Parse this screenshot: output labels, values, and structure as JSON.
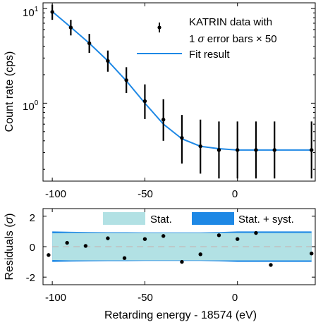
{
  "chart_data": [
    {
      "type": "scatter",
      "panel": "top",
      "xlabel": "",
      "ylabel": "Count rate (cps)",
      "yscale": "log",
      "xlim": [
        -105,
        42
      ],
      "ylim": [
        0.15,
        11.5
      ],
      "x_ticks": [
        -100,
        -50,
        0
      ],
      "x_tick_labels": [
        "-100",
        "-50",
        "0"
      ],
      "y_ticks": [
        1,
        10
      ],
      "y_tick_base": "10",
      "y_tick_exponents": [
        "0",
        "1"
      ],
      "legend_position": "top-right",
      "legend": {
        "data_label_line1": "KATRIN data with",
        "data_label_line2_prefix": "1",
        "data_label_line2_sigma": "σ",
        "data_label_line2_suffix": "error bars",
        "data_label_line2_times": "×",
        "data_label_line2_factor": "50",
        "fit_label": "Fit result"
      },
      "series": [
        {
          "kind": "points-with-errorbars",
          "x": [
            -100,
            -90,
            -80,
            -70,
            -60,
            -50,
            -40,
            -30,
            -20,
            -10,
            0,
            10,
            20,
            40
          ],
          "y": [
            9.2,
            6.3,
            4.3,
            2.8,
            1.75,
            1.05,
            0.67,
            0.43,
            0.35,
            0.32,
            0.32,
            0.32,
            0.32,
            0.32
          ],
          "y_low": [
            7.6,
            5.2,
            3.4,
            2.15,
            1.28,
            0.68,
            0.4,
            0.23,
            0.18,
            0.16,
            0.16,
            0.16,
            0.16,
            0.16
          ],
          "y_high": [
            11.0,
            7.6,
            5.4,
            3.6,
            2.4,
            1.58,
            1.1,
            0.75,
            0.67,
            0.64,
            0.64,
            0.64,
            0.64,
            0.64
          ],
          "color": "#000000"
        },
        {
          "kind": "line",
          "x": [
            -100,
            -90,
            -80,
            -70,
            -60,
            -50,
            -40,
            -30,
            -20,
            -10,
            0,
            10,
            20,
            30,
            40
          ],
          "y": [
            9.3,
            6.35,
            4.3,
            2.8,
            1.72,
            1.0,
            0.6,
            0.42,
            0.35,
            0.33,
            0.32,
            0.32,
            0.32,
            0.32,
            0.32
          ],
          "color": "#1e88e5"
        }
      ]
    },
    {
      "type": "scatter",
      "panel": "bottom",
      "xlabel": "Retarding energy - 18574 (eV)",
      "ylabel_prefix": "Residuals (",
      "ylabel_sigma": "σ",
      "ylabel_suffix": ")",
      "xlim": [
        -105,
        42
      ],
      "ylim": [
        -2.5,
        2.5
      ],
      "x_ticks": [
        -100,
        -50,
        0
      ],
      "x_tick_labels": [
        "-100",
        "-50",
        "0"
      ],
      "y_ticks": [
        -2,
        0,
        2
      ],
      "y_tick_labels": [
        "-2",
        "0",
        "2"
      ],
      "legend_position": "top",
      "legend": {
        "stat_label": "Stat.",
        "syst_label": "Stat. + syst."
      },
      "bands": {
        "x": [
          -100,
          -90,
          -80,
          -70,
          -60,
          -50,
          -40,
          -30,
          -20,
          -10,
          0,
          10,
          20,
          30,
          40
        ],
        "stat_half_width": [
          0.88,
          0.9,
          0.9,
          0.9,
          0.9,
          0.9,
          0.9,
          0.9,
          0.9,
          0.9,
          0.9,
          0.9,
          0.9,
          0.9,
          0.9
        ],
        "syst_half_width": [
          1.0,
          0.98,
          0.96,
          0.95,
          0.95,
          0.94,
          0.94,
          0.94,
          0.94,
          0.96,
          1.0,
          1.0,
          1.0,
          1.0,
          1.0
        ],
        "stat_color": "#b2e1e4",
        "syst_color": "#1e88e5",
        "zero_line_color": "#c0c0c0"
      },
      "points": {
        "x": [
          -102,
          -92,
          -82,
          -70,
          -61,
          -50,
          -40,
          -30,
          -20,
          -10,
          0,
          10,
          18,
          40
        ],
        "y": [
          -0.55,
          0.25,
          0.05,
          0.55,
          -0.75,
          0.5,
          0.7,
          -1.0,
          -0.5,
          0.75,
          0.5,
          0.9,
          -1.2,
          -0.45
        ],
        "color": "#000000"
      }
    }
  ]
}
